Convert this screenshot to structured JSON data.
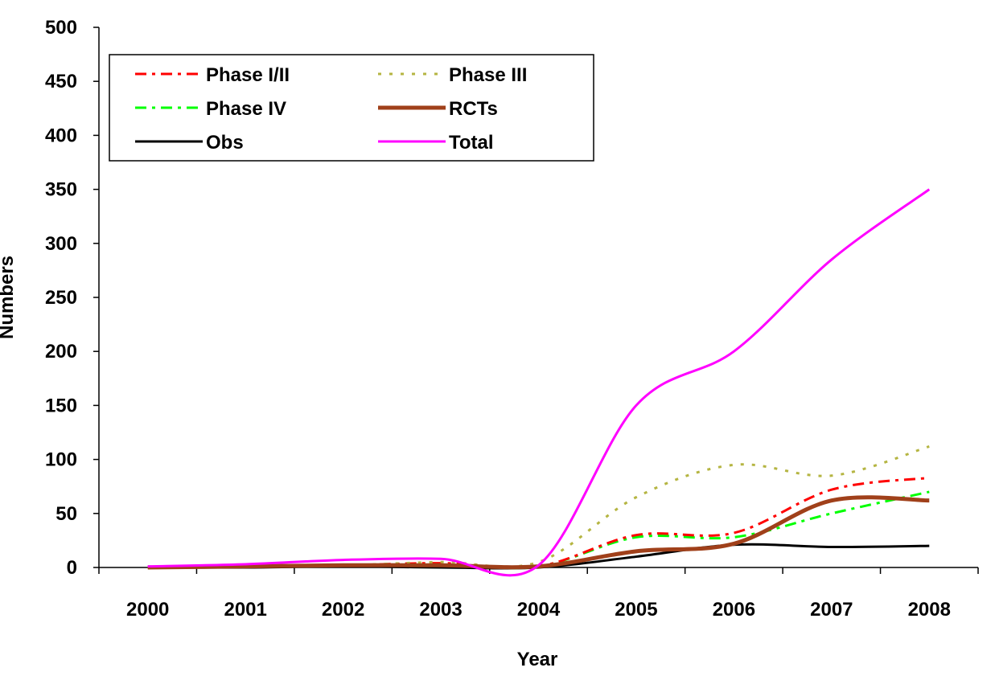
{
  "chart_data": {
    "type": "line",
    "xlabel": "Year",
    "ylabel": "Numbers",
    "ylim": [
      0,
      500
    ],
    "yticks": [
      0,
      50,
      100,
      150,
      200,
      250,
      300,
      350,
      400,
      450,
      500
    ],
    "x": [
      "2000",
      "2001",
      "2002",
      "2003",
      "2004",
      "2005",
      "2006",
      "2007",
      "2008"
    ],
    "grid": false,
    "legend": "top-left",
    "series": [
      {
        "name": "Phase I/II",
        "values": [
          0,
          1,
          2,
          4,
          1,
          30,
          32,
          72,
          83
        ],
        "color": "#ff0000",
        "style": "dashdot"
      },
      {
        "name": "Phase III",
        "values": [
          0,
          1,
          2,
          5,
          5,
          65,
          95,
          85,
          112
        ],
        "color": "#b5b542",
        "style": "dotted"
      },
      {
        "name": "Phase IV",
        "values": [
          0,
          1,
          2,
          3,
          1,
          28,
          28,
          50,
          70
        ],
        "color": "#00ff00",
        "style": "dashdot"
      },
      {
        "name": "RCTs",
        "values": [
          0,
          1,
          2,
          2,
          1,
          15,
          22,
          62,
          62
        ],
        "color": "#a0401a",
        "style": "solid-thick"
      },
      {
        "name": "Obs",
        "values": [
          0,
          0,
          1,
          0,
          0,
          10,
          21,
          19,
          20
        ],
        "color": "#000000",
        "style": "solid"
      },
      {
        "name": "Total",
        "values": [
          1,
          3,
          7,
          8,
          2,
          150,
          200,
          285,
          350
        ],
        "color": "#ff00ff",
        "style": "solid"
      }
    ]
  }
}
